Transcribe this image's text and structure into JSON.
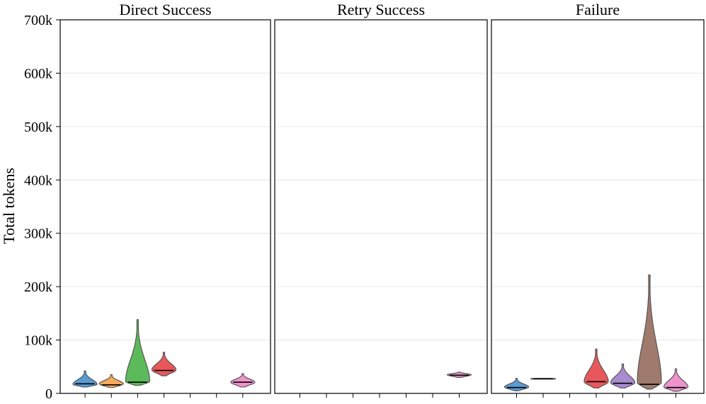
{
  "chart_data": {
    "type": "violin",
    "ylabel": "Total tokens",
    "ylim": [
      0,
      700000
    ],
    "yticks": [
      0,
      100000,
      200000,
      300000,
      400000,
      500000,
      600000,
      700000
    ],
    "ytick_labels": [
      "0",
      "100k",
      "200k",
      "300k",
      "400k",
      "500k",
      "600k",
      "700k"
    ],
    "grid": true,
    "slots_per_panel": 7,
    "colors": [
      "#5a9bd4",
      "#f8a95b",
      "#5dba5b",
      "#e8585b",
      "#a98bd1",
      "#a07a6d",
      "#ef93cc"
    ],
    "panels": [
      {
        "title": "Direct Success",
        "violins": [
          {
            "slot": 0,
            "color_index": 0,
            "min": 12000,
            "max": 42000,
            "median": 18000,
            "mode": 17000
          },
          {
            "slot": 1,
            "color_index": 1,
            "min": 11000,
            "max": 35000,
            "median": 16000,
            "mode": 18000
          },
          {
            "slot": 2,
            "color_index": 2,
            "min": 15000,
            "max": 138000,
            "median": 21000,
            "mode": 22000
          },
          {
            "slot": 3,
            "color_index": 3,
            "min": 33000,
            "max": 77000,
            "median": 43000,
            "mode": 44000
          },
          {
            "slot": 6,
            "color_index": 6,
            "min": 12000,
            "max": 37000,
            "median": 21000,
            "mode": 21000
          }
        ]
      },
      {
        "title": "Retry Success",
        "violins": [
          {
            "slot": 6,
            "color_index": 6,
            "min": 30000,
            "max": 40000,
            "median": 34000,
            "mode": 35000
          }
        ]
      },
      {
        "title": "Failure",
        "violins": [
          {
            "slot": 0,
            "color_index": 0,
            "min": 5000,
            "max": 28000,
            "median": 11000,
            "mode": 12000
          },
          {
            "slot": 1,
            "color_index": 1,
            "min": 27000,
            "max": 28000,
            "median": 27500,
            "mode": 27500
          },
          {
            "slot": 3,
            "color_index": 3,
            "min": 10000,
            "max": 83000,
            "median": 22000,
            "mode": 22000
          },
          {
            "slot": 4,
            "color_index": 4,
            "min": 10000,
            "max": 55000,
            "median": 19000,
            "mode": 20000
          },
          {
            "slot": 5,
            "color_index": 5,
            "min": 8000,
            "max": 222000,
            "median": 17000,
            "mode": 20000
          },
          {
            "slot": 6,
            "color_index": 6,
            "min": 4000,
            "max": 46000,
            "median": 11000,
            "mode": 12000
          }
        ]
      }
    ]
  }
}
